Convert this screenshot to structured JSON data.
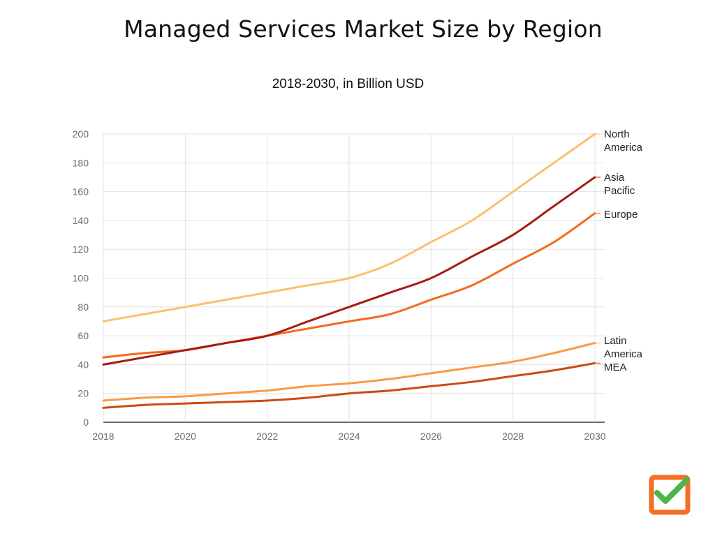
{
  "page": {
    "title": "Managed Services Market Size by Region",
    "subtitle": "2018-2030, in Billion USD"
  },
  "colors": {
    "grid": "#e2e2e2",
    "axis": "#333333",
    "logo_orange": "#f36f21",
    "logo_check": "#4cb748"
  },
  "logo": {
    "icon": "checkbox-check-icon"
  },
  "chart_data": {
    "type": "line",
    "title": "Managed Services Market Size by Region",
    "subtitle": "2018-2030, in Billion USD",
    "xlabel": "",
    "ylabel": "",
    "xlim": [
      2018,
      2030
    ],
    "ylim": [
      0,
      200
    ],
    "grid": true,
    "x": [
      2018,
      2019,
      2020,
      2021,
      2022,
      2023,
      2024,
      2025,
      2026,
      2027,
      2028,
      2029,
      2030
    ],
    "x_ticks": [
      "2018",
      "2020",
      "2022",
      "2024",
      "2026",
      "2028",
      "2030"
    ],
    "y_ticks": [
      "0",
      "20",
      "40",
      "60",
      "80",
      "100",
      "120",
      "140",
      "160",
      "180",
      "200"
    ],
    "series": [
      {
        "name": "North America",
        "label_lines": [
          "North",
          "America"
        ],
        "color": "#fdbf6f",
        "values": [
          70,
          75,
          80,
          85,
          90,
          95,
          100,
          110,
          125,
          140,
          160,
          180,
          200
        ]
      },
      {
        "name": "Asia Pacific",
        "label_lines": [
          "Asia",
          "Pacific"
        ],
        "color": "#a51c15",
        "values": [
          40,
          45,
          50,
          55,
          60,
          70,
          80,
          90,
          100,
          115,
          130,
          150,
          170
        ]
      },
      {
        "name": "Europe",
        "label_lines": [
          "Europe"
        ],
        "color": "#f26b1d",
        "values": [
          45,
          48,
          50,
          55,
          60,
          65,
          70,
          75,
          85,
          95,
          110,
          125,
          145
        ]
      },
      {
        "name": "Latin America",
        "label_lines": [
          "Latin",
          "America"
        ],
        "color": "#fb9a45",
        "values": [
          15,
          17,
          18,
          20,
          22,
          25,
          27,
          30,
          34,
          38,
          42,
          48,
          55
        ]
      },
      {
        "name": "MEA",
        "label_lines": [
          "MEA"
        ],
        "color": "#cc4a14",
        "values": [
          10,
          12,
          13,
          14,
          15,
          17,
          20,
          22,
          25,
          28,
          32,
          36,
          41
        ]
      }
    ]
  }
}
